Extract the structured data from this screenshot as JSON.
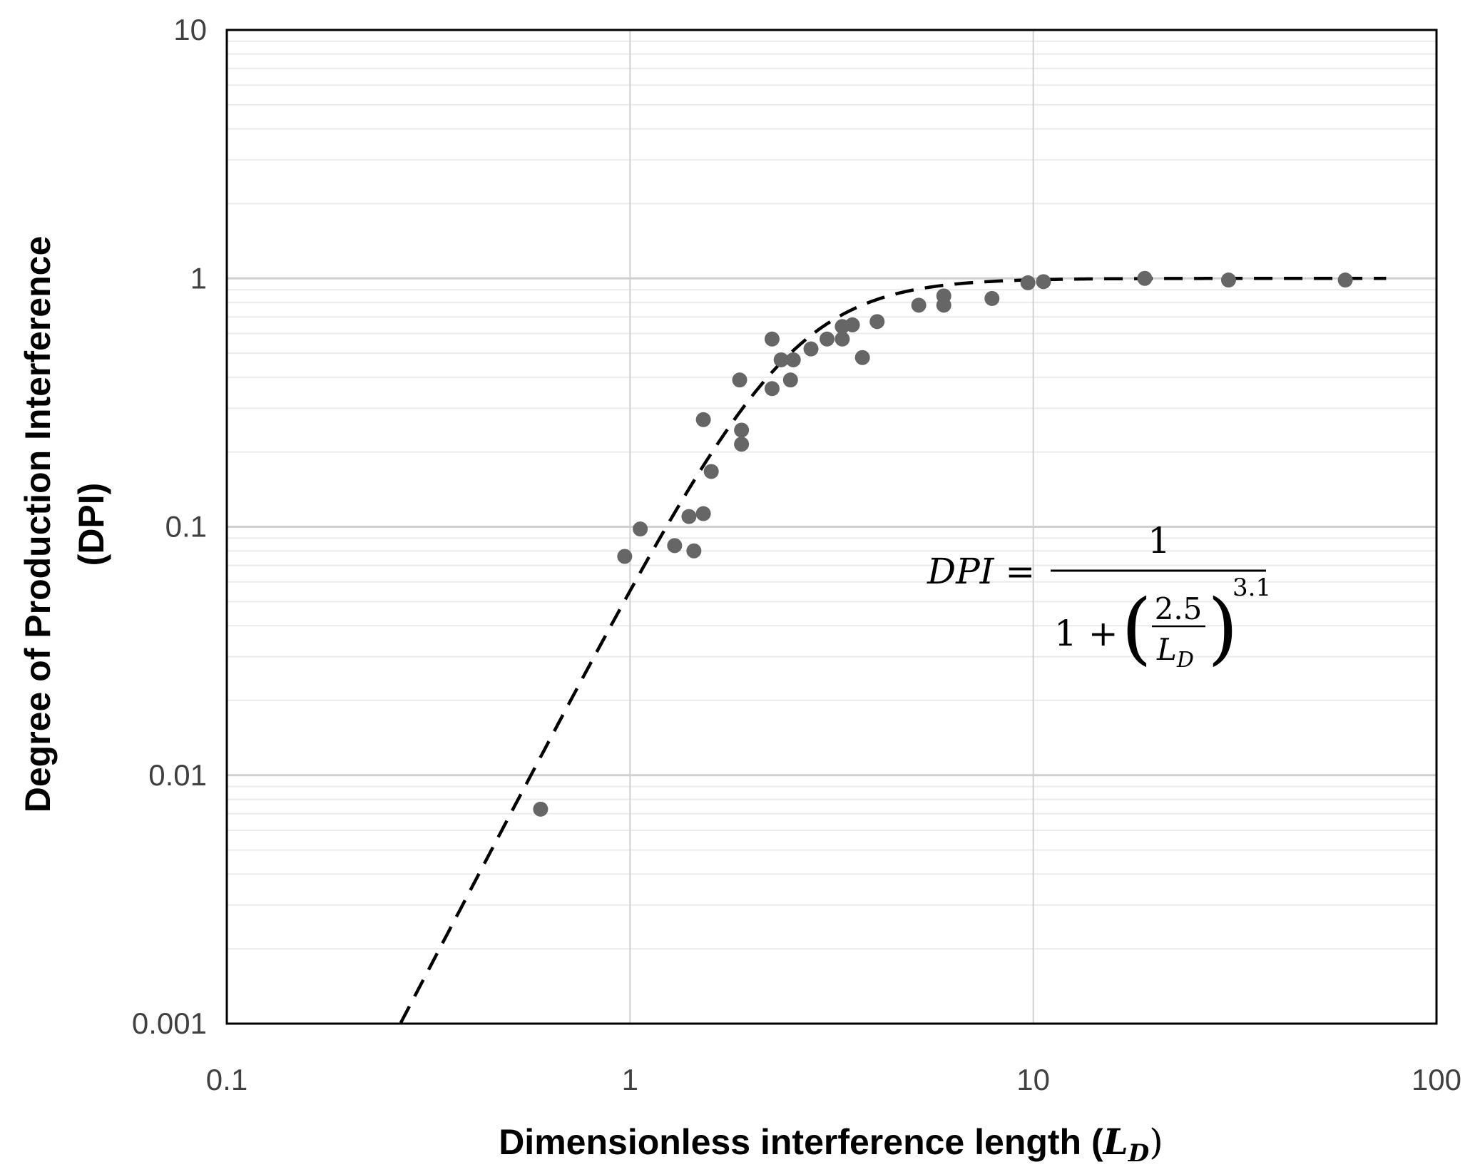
{
  "chart_data": {
    "type": "scatter",
    "title": "",
    "xlabel": "Dimensionless interference length (",
    "xlabel_symbol": "L",
    "xlabel_subscript": "D",
    "xlabel_close": ")",
    "ylabel_line1": "Degree of Production Interference",
    "ylabel_line2": "(DPI)",
    "x_scale": "log",
    "y_scale": "log",
    "xlim": [
      0.1,
      100
    ],
    "ylim": [
      0.001,
      10
    ],
    "x_ticks": [
      "0.1",
      "1",
      "10",
      "100"
    ],
    "y_ticks": [
      "0.001",
      "0.01",
      "0.1",
      "1",
      "10"
    ],
    "grid": "horizontal major+minor, vertical major",
    "legend": "none",
    "point_color": "#666666",
    "series": [
      {
        "type": "scatter",
        "points": [
          [
            0.6,
            0.0073
          ],
          [
            0.97,
            0.076
          ],
          [
            1.06,
            0.098
          ],
          [
            1.29,
            0.084
          ],
          [
            1.4,
            0.11
          ],
          [
            1.44,
            0.08
          ],
          [
            1.52,
            0.113
          ],
          [
            1.52,
            0.27
          ],
          [
            1.59,
            0.167
          ],
          [
            1.87,
            0.39
          ],
          [
            1.89,
            0.245
          ],
          [
            1.89,
            0.215
          ],
          [
            2.25,
            0.57
          ],
          [
            2.25,
            0.36
          ],
          [
            2.37,
            0.47
          ],
          [
            2.5,
            0.39
          ],
          [
            2.54,
            0.47
          ],
          [
            2.81,
            0.52
          ],
          [
            3.08,
            0.57
          ],
          [
            3.36,
            0.64
          ],
          [
            3.36,
            0.57
          ],
          [
            3.56,
            0.65
          ],
          [
            3.77,
            0.48
          ],
          [
            4.1,
            0.67
          ],
          [
            5.2,
            0.78
          ],
          [
            6.0,
            0.85
          ],
          [
            6.0,
            0.78
          ],
          [
            7.9,
            0.83
          ],
          [
            9.7,
            0.96
          ],
          [
            10.6,
            0.97
          ],
          [
            18.9,
            1.0
          ],
          [
            30.5,
            0.985
          ],
          [
            59.4,
            0.985
          ]
        ]
      },
      {
        "type": "line",
        "style": "dashed",
        "model": {
          "a": 2.5,
          "n": 3.1
        },
        "x_range": [
          0.27,
          75
        ]
      }
    ],
    "annotation": {
      "lhs": "DPI =",
      "numerator": "1",
      "denominator_prefix": "1 +",
      "frac_num": "2.5",
      "frac_den_symbol": "L",
      "frac_den_subscript": "D",
      "exponent": "3.1"
    }
  }
}
